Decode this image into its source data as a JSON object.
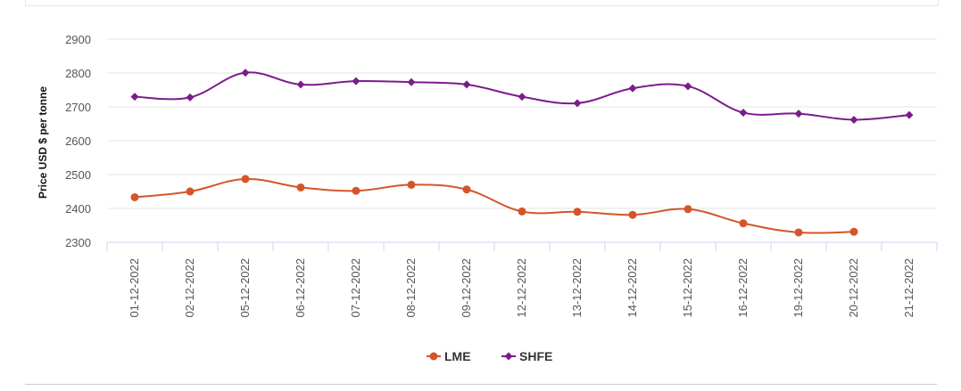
{
  "chart_data": {
    "type": "line",
    "title": "",
    "xlabel": "",
    "ylabel": "Price USD $ per tonne",
    "ylim": [
      2300,
      2900
    ],
    "yticks": [
      2300,
      2400,
      2500,
      2600,
      2700,
      2800,
      2900
    ],
    "categories": [
      "01-12-2022",
      "02-12-2022",
      "05-12-2022",
      "06-12-2022",
      "07-12-2022",
      "08-12-2022",
      "09-12-2022",
      "12-12-2022",
      "13-12-2022",
      "14-12-2022",
      "15-12-2022",
      "16-12-2022",
      "19-12-2022",
      "20-12-2022",
      "21-12-2022"
    ],
    "series": [
      {
        "name": "LME",
        "color": "#d4552a",
        "marker": "circle",
        "values": [
          2433,
          2450,
          2487,
          2462,
          2452,
          2470,
          2456,
          2391,
          2390,
          2381,
          2398,
          2356,
          2329,
          2331,
          null
        ]
      },
      {
        "name": "SHFE",
        "color": "#7b1c8c",
        "marker": "diamond",
        "values": [
          2730,
          2728,
          2801,
          2766,
          2776,
          2773,
          2766,
          2730,
          2711,
          2755,
          2761,
          2683,
          2680,
          2662,
          2676
        ]
      }
    ],
    "grid": "horizontal",
    "legend": "bottom-center"
  }
}
